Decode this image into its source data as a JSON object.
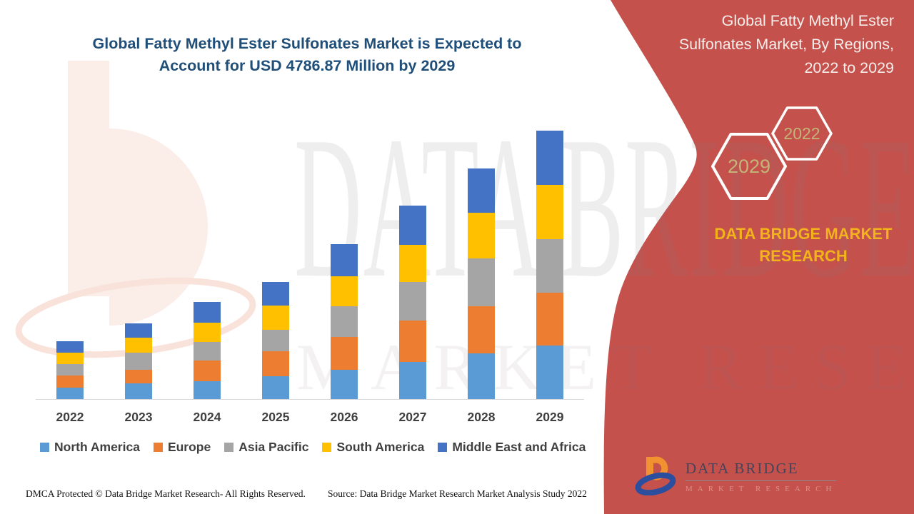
{
  "header": {
    "title_line1": "Global Fatty Methyl Ester Sulfonates Market is Expected to",
    "title_line2": "Account for USD 4786.87 Million by 2029",
    "title_color": "#1F4E79"
  },
  "side_panel": {
    "background_color": "#C5514D",
    "title_line1": "Global Fatty Methyl Ester",
    "title_line2": "Sulfonates Market, By Regions,",
    "title_line3": "2022 to 2029",
    "hexagon_back_label": "2029",
    "hexagon_front_label": "2022",
    "hexagon_text_color": "#C3B478",
    "brand_line1": "DATA BRIDGE MARKET",
    "brand_line2": "RESEARCH",
    "brand_color": "#F2B31B"
  },
  "logo": {
    "name_text": "DATA BRIDGE",
    "subtitle_text": "MARKET RESEARCH",
    "orange": "#F0922F",
    "blue": "#2C4E9E"
  },
  "watermark": {
    "line1": "DATA BRIDGE",
    "line2": "MARKET RESEARCH"
  },
  "footer": {
    "dmca_text": "DMCA Protected © Data Bridge Market Research- All Rights Reserved.",
    "source_text": "Source: Data Bridge Market Research Market Analysis Study 2022"
  },
  "chart_data": {
    "type": "bar",
    "stacked": true,
    "unit": "USD Million",
    "title": "Global Fatty Methyl Ester Sulfonates Market, By Regions, 2022 to 2029",
    "xlabel": "",
    "ylabel": "",
    "y_axis_visible": false,
    "grid": false,
    "legend_position": "bottom",
    "ylim": [
      0,
      5000
    ],
    "categories": [
      "2022",
      "2023",
      "2024",
      "2025",
      "2026",
      "2027",
      "2028",
      "2029"
    ],
    "series": [
      {
        "name": "North America",
        "color": "#5B9BD5",
        "values": [
          206,
          283,
          322,
          412,
          528,
          669,
          811,
          952
        ]
      },
      {
        "name": "Europe",
        "color": "#ED7D31",
        "values": [
          219,
          245,
          360,
          438,
          579,
          734,
          849,
          952
        ]
      },
      {
        "name": "Asia Pacific",
        "color": "#A5A5A5",
        "values": [
          193,
          296,
          335,
          386,
          553,
          682,
          849,
          952
        ]
      },
      {
        "name": "South America",
        "color": "#FFC000",
        "values": [
          206,
          270,
          347,
          438,
          528,
          669,
          811,
          965
        ]
      },
      {
        "name": "Middle East and Africa",
        "color": "#4472C4",
        "values": [
          206,
          257,
          373,
          412,
          579,
          695,
          798,
          965.87
        ]
      }
    ],
    "totals": [
      1030,
      1351,
      1737,
      2086,
      2767,
      3449,
      4118,
      4786.87
    ]
  }
}
